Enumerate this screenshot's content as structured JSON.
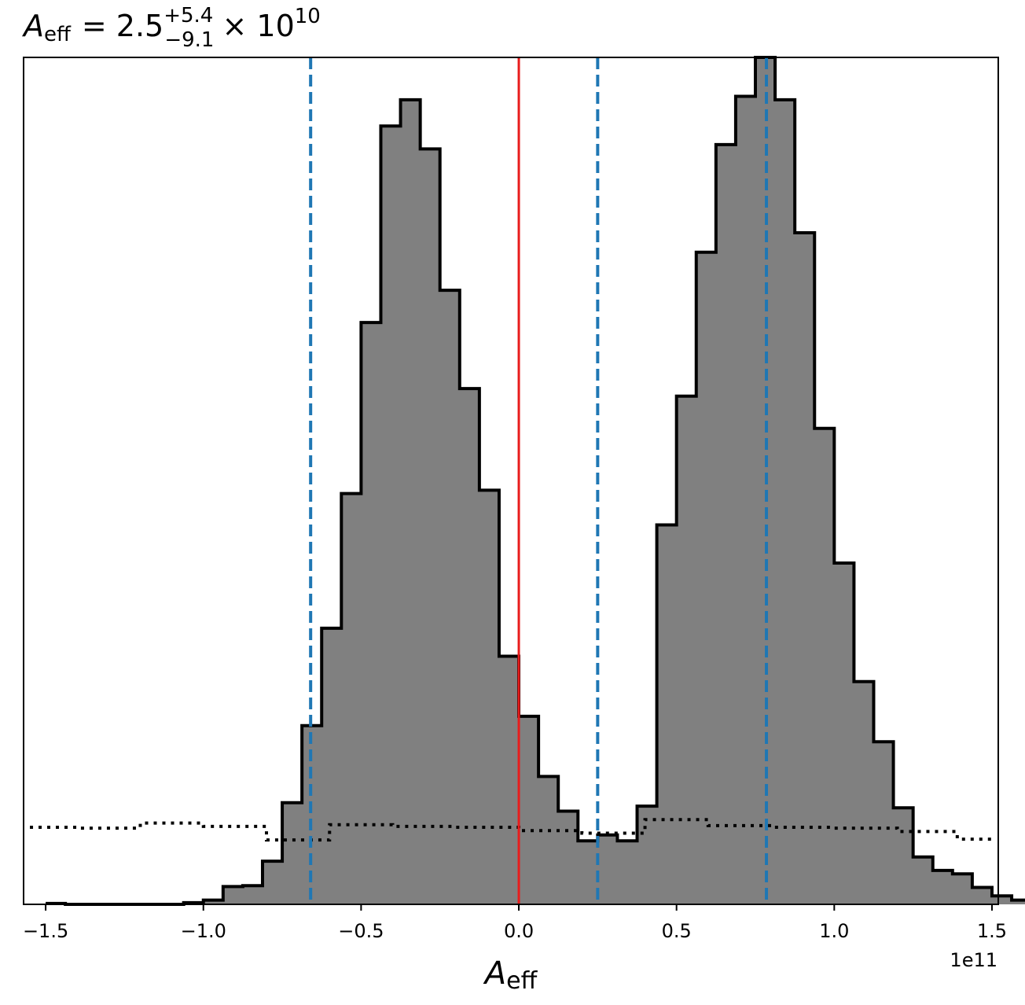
{
  "chart_data": {
    "type": "histogram",
    "title": {
      "symbol": "A",
      "symbol_sub": "eff",
      "median": "2.5",
      "upper": "+5.4",
      "lower": "−9.1",
      "scale": "× 10",
      "exponent": "10"
    },
    "xlabel": {
      "symbol": "A",
      "sub": "eff"
    },
    "x_offset_label": "1e11",
    "xlim": [
      -1.57,
      1.52
    ],
    "ylim": [
      0,
      1.0
    ],
    "x_unit_scale": 100000000000.0,
    "xticks": [
      -1.5,
      -1.0,
      -0.5,
      0.0,
      0.5,
      1.0,
      1.5
    ],
    "xtick_labels": [
      "−1.5",
      "−1.0",
      "−0.5",
      "0.0",
      "0.5",
      "1.0",
      "1.5"
    ],
    "bin_start": -1.5,
    "bin_width": 0.0625,
    "posterior_counts": [
      0.001,
      0.0,
      0.0,
      0.0,
      0.0,
      0.0,
      0.0,
      0.002,
      0.005,
      0.021,
      0.022,
      0.051,
      0.12,
      0.211,
      0.326,
      0.485,
      0.687,
      0.919,
      0.95,
      0.892,
      0.725,
      0.609,
      0.489,
      0.293,
      0.222,
      0.151,
      0.11,
      0.075,
      0.082,
      0.075,
      0.116,
      0.448,
      0.6,
      0.77,
      0.897,
      0.954,
      1.0,
      0.95,
      0.793,
      0.562,
      0.403,
      0.263,
      0.192,
      0.114,
      0.056,
      0.04,
      0.036,
      0.02,
      0.01,
      0.005,
      0.002,
      0.0,
      0.0
    ],
    "prior_x_edges": [
      -1.55,
      -1.39,
      -1.2,
      -1.0,
      -0.8,
      -0.6,
      -0.4,
      -0.2,
      0.0,
      0.2,
      0.4,
      0.6,
      0.8,
      1.0,
      1.2,
      1.39,
      1.51
    ],
    "prior_values": [
      0.091,
      0.09,
      0.096,
      0.092,
      0.076,
      0.094,
      0.092,
      0.091,
      0.087,
      0.084,
      0.1,
      0.093,
      0.091,
      0.09,
      0.086,
      0.077
    ],
    "quantiles": [
      -0.66,
      0.25,
      0.785
    ],
    "injected_value": 0.0,
    "colors": {
      "fill": "#808080",
      "edge": "#000000",
      "quantile": "#1f77b4",
      "injected": "#e81c1c",
      "prior": "#000000"
    }
  }
}
